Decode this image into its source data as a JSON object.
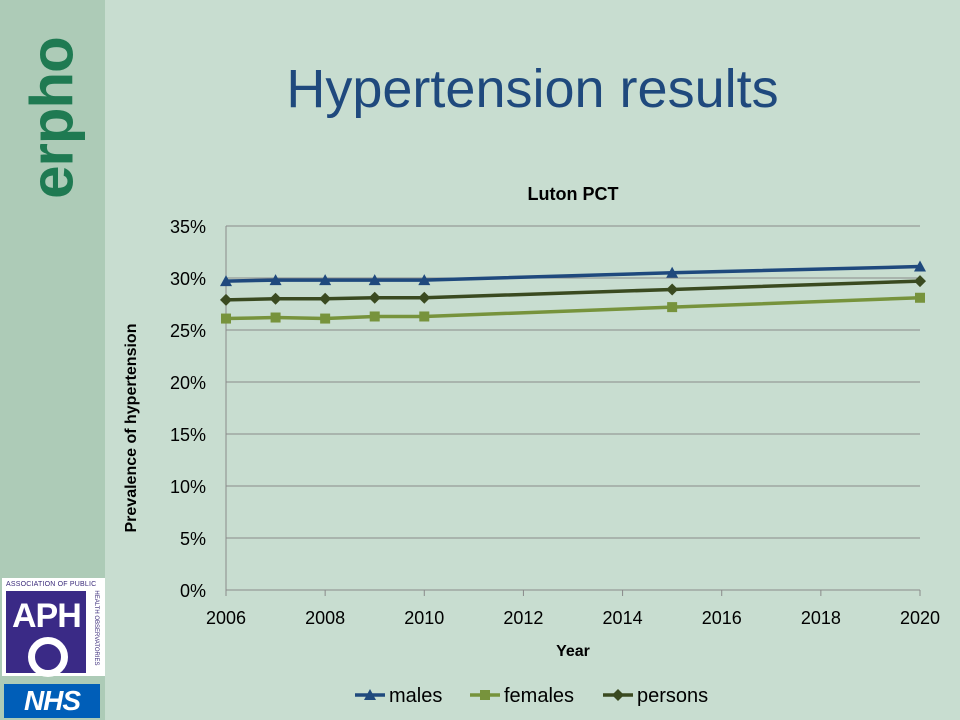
{
  "slide": {
    "title": "Hypertension results",
    "brand": "erpho",
    "aph_caption_top": "ASSOCIATION OF PUBLIC",
    "aph_letters": "APH",
    "aph_caption_side": "HEALTH OBSERVATORIES",
    "nhs_text": "NHS"
  },
  "chart_data": {
    "type": "line",
    "title": "Luton PCT",
    "xlabel": "Year",
    "ylabel": "Prevalence of hypertension",
    "xlim": [
      2006,
      2020
    ],
    "ylim": [
      0,
      0.35
    ],
    "x_ticks": [
      2006,
      2008,
      2010,
      2012,
      2014,
      2016,
      2018,
      2020
    ],
    "y_ticks": [
      0,
      0.05,
      0.1,
      0.15,
      0.2,
      0.25,
      0.3,
      0.35
    ],
    "y_tick_labels": [
      "0%",
      "5%",
      "10%",
      "15%",
      "20%",
      "25%",
      "30%",
      "35%"
    ],
    "grid": "horizontal",
    "legend": "bottom",
    "series": [
      {
        "name": "males",
        "color": "#1f497d",
        "marker": "triangle",
        "x": [
          2006,
          2007,
          2008,
          2009,
          2010,
          2015,
          2020
        ],
        "y": [
          0.297,
          0.298,
          0.298,
          0.298,
          0.298,
          0.305,
          0.311
        ]
      },
      {
        "name": "females",
        "color": "#77933c",
        "marker": "square",
        "x": [
          2006,
          2007,
          2008,
          2009,
          2010,
          2015,
          2020
        ],
        "y": [
          0.261,
          0.262,
          0.261,
          0.263,
          0.263,
          0.272,
          0.281
        ]
      },
      {
        "name": "persons",
        "color": "#3a4a20",
        "marker": "diamond",
        "x": [
          2006,
          2007,
          2008,
          2009,
          2010,
          2015,
          2020
        ],
        "y": [
          0.279,
          0.28,
          0.28,
          0.281,
          0.281,
          0.289,
          0.297
        ]
      }
    ]
  }
}
